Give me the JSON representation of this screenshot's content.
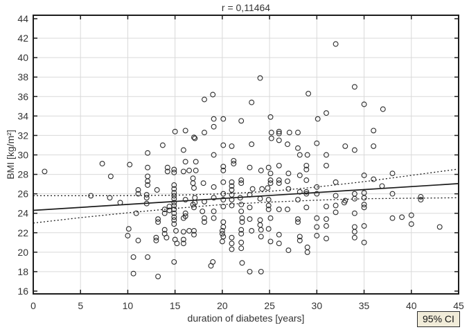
{
  "chart_data": {
    "type": "scatter",
    "title": "r = 0,11464",
    "xlabel": "duration of diabetes [years]",
    "ylabel": "BMI [kg/m²]",
    "legend": {
      "label": "95% CI",
      "position": "bottom-right",
      "bg": "#f1ecd9"
    },
    "xlim": [
      0,
      45
    ],
    "ylim": [
      16,
      44
    ],
    "xticks": [
      0,
      5,
      10,
      15,
      20,
      25,
      30,
      35,
      40,
      45
    ],
    "yticks": [
      16,
      18,
      20,
      22,
      24,
      26,
      28,
      30,
      32,
      34,
      36,
      38,
      40,
      42,
      44
    ],
    "grid": true,
    "colors": {
      "frame": "#1c1c1c",
      "grid": "#d9d9d9",
      "marker": "#2b2b2b",
      "line": "#1c1c1c",
      "text": "#333333"
    },
    "regression_line": {
      "x": [
        0,
        45
      ],
      "y": [
        24.3,
        27.05
      ]
    },
    "ci_upper": {
      "x": [
        0,
        5,
        10,
        15,
        20,
        25,
        30,
        35,
        40,
        45
      ],
      "y": [
        25.8,
        25.8,
        25.82,
        25.85,
        26.0,
        26.25,
        26.7,
        27.25,
        27.9,
        28.55
      ]
    },
    "ci_lower": {
      "x": [
        0,
        5,
        10,
        15,
        20,
        25,
        30,
        35,
        40,
        45
      ],
      "y": [
        23.0,
        23.55,
        24.05,
        24.5,
        24.9,
        25.15,
        25.35,
        25.5,
        25.55,
        25.6
      ]
    },
    "points": [
      [
        1.2,
        28.3
      ],
      [
        6.1,
        25.8
      ],
      [
        7.3,
        29.1
      ],
      [
        8.2,
        27.8
      ],
      [
        8.1,
        25.6
      ],
      [
        9.2,
        25.1
      ],
      [
        10.2,
        29.0
      ],
      [
        10.1,
        22.4
      ],
      [
        10.0,
        21.7
      ],
      [
        10.6,
        19.5
      ],
      [
        10.6,
        17.8
      ],
      [
        11.1,
        26.4
      ],
      [
        11.1,
        26.0
      ],
      [
        10.9,
        24.0
      ],
      [
        11.1,
        21.2
      ],
      [
        12.1,
        30.2
      ],
      [
        12.1,
        28.7
      ],
      [
        12.1,
        27.8
      ],
      [
        12.1,
        27.3
      ],
      [
        12.1,
        26.9
      ],
      [
        12.0,
        25.9
      ],
      [
        12.0,
        25.6
      ],
      [
        12.0,
        25.0
      ],
      [
        12.1,
        19.5
      ],
      [
        13.1,
        26.4
      ],
      [
        13.2,
        23.4
      ],
      [
        13.2,
        23.1
      ],
      [
        13.0,
        21.5
      ],
      [
        13.0,
        21.2
      ],
      [
        13.2,
        17.5
      ],
      [
        13.7,
        31.0
      ],
      [
        14.2,
        28.7
      ],
      [
        14.2,
        28.3
      ],
      [
        13.9,
        24.4
      ],
      [
        13.9,
        24.0
      ],
      [
        14.4,
        24.7
      ],
      [
        14.4,
        24.3
      ],
      [
        13.9,
        22.3
      ],
      [
        13.9,
        21.9
      ],
      [
        14.1,
        21.5
      ],
      [
        14.9,
        28.5
      ],
      [
        14.9,
        28.2
      ],
      [
        14.9,
        26.9
      ],
      [
        14.9,
        26.5
      ],
      [
        14.9,
        26.1
      ],
      [
        14.9,
        25.8
      ],
      [
        14.9,
        25.5
      ],
      [
        14.9,
        25.1
      ],
      [
        14.9,
        24.8
      ],
      [
        14.9,
        24.4
      ],
      [
        14.9,
        24.0
      ],
      [
        14.9,
        23.6
      ],
      [
        14.9,
        23.3
      ],
      [
        14.9,
        22.9
      ],
      [
        15.1,
        22.2
      ],
      [
        15.0,
        21.3
      ],
      [
        15.2,
        20.9
      ],
      [
        14.9,
        19.0
      ],
      [
        15.0,
        32.4
      ],
      [
        15.9,
        30.5
      ],
      [
        16.1,
        29.3
      ],
      [
        16.5,
        28.4
      ],
      [
        15.9,
        28.3
      ],
      [
        16.9,
        27.6
      ],
      [
        16.9,
        27.1
      ],
      [
        16.1,
        25.4
      ],
      [
        16.1,
        24.0
      ],
      [
        16.1,
        23.7
      ],
      [
        15.9,
        23.5
      ],
      [
        15.9,
        22.1
      ],
      [
        16.5,
        22.2
      ],
      [
        15.9,
        21.3
      ],
      [
        15.9,
        20.9
      ],
      [
        16.1,
        32.5
      ],
      [
        17.0,
        31.8
      ],
      [
        17.1,
        31.7
      ],
      [
        17.2,
        29.3
      ],
      [
        17.2,
        28.4
      ],
      [
        17.1,
        25.6
      ],
      [
        17.1,
        25.1
      ],
      [
        17.0,
        26.6
      ],
      [
        17.0,
        24.6
      ],
      [
        16.9,
        24.9
      ],
      [
        17.9,
        24.2
      ],
      [
        17.0,
        22.2
      ],
      [
        17.0,
        21.8
      ],
      [
        18.1,
        35.7
      ],
      [
        18.1,
        32.3
      ],
      [
        18.0,
        27.1
      ],
      [
        18.1,
        25.2
      ],
      [
        18.1,
        23.5
      ],
      [
        18.1,
        23.1
      ],
      [
        19.0,
        36.2
      ],
      [
        19.1,
        33.7
      ],
      [
        19.1,
        32.9
      ],
      [
        19.1,
        30.0
      ],
      [
        19.1,
        26.7
      ],
      [
        19.1,
        25.6
      ],
      [
        19.1,
        24.2
      ],
      [
        19.1,
        23.5
      ],
      [
        19.0,
        19.0
      ],
      [
        18.8,
        18.6
      ],
      [
        20.1,
        33.7
      ],
      [
        20.1,
        31.0
      ],
      [
        20.1,
        28.8
      ],
      [
        20.1,
        28.4
      ],
      [
        20.1,
        27.2
      ],
      [
        20.1,
        26.0
      ],
      [
        20.1,
        25.4
      ],
      [
        20.1,
        24.7
      ],
      [
        20.1,
        23.1
      ],
      [
        20.1,
        22.6
      ],
      [
        20.0,
        22.2
      ],
      [
        20.0,
        21.9
      ],
      [
        20.1,
        21.6
      ],
      [
        20.0,
        21.1
      ],
      [
        21.2,
        29.4
      ],
      [
        21.2,
        29.1
      ],
      [
        21.0,
        30.9
      ],
      [
        21.0,
        27.2
      ],
      [
        21.0,
        26.8
      ],
      [
        21.0,
        26.4
      ],
      [
        21.0,
        25.9
      ],
      [
        21.0,
        25.4
      ],
      [
        21.0,
        24.8
      ],
      [
        21.0,
        21.5
      ],
      [
        21.0,
        20.9
      ],
      [
        21.0,
        20.3
      ],
      [
        22.0,
        33.5
      ],
      [
        21.9,
        25.6
      ],
      [
        22.0,
        27.4
      ],
      [
        22.0,
        27.1
      ],
      [
        22.0,
        24.9
      ],
      [
        22.0,
        24.2
      ],
      [
        22.1,
        23.5
      ],
      [
        22.1,
        23.1
      ],
      [
        22.0,
        22.3
      ],
      [
        22.0,
        21.9
      ],
      [
        22.0,
        21.0
      ],
      [
        22.0,
        20.4
      ],
      [
        22.1,
        18.9
      ],
      [
        22.9,
        28.7
      ],
      [
        23.2,
        26.5
      ],
      [
        22.9,
        25.9
      ],
      [
        22.9,
        24.6
      ],
      [
        22.9,
        23.4
      ],
      [
        23.1,
        31.1
      ],
      [
        23.1,
        35.4
      ],
      [
        23.1,
        22.2
      ],
      [
        22.9,
        18.0
      ],
      [
        24.0,
        37.9
      ],
      [
        24.1,
        28.4
      ],
      [
        24.2,
        26.5
      ],
      [
        24.0,
        25.5
      ],
      [
        24.0,
        23.3
      ],
      [
        24.0,
        22.8
      ],
      [
        24.1,
        22.3
      ],
      [
        24.1,
        21.6
      ],
      [
        24.1,
        18.0
      ],
      [
        24.9,
        28.7
      ],
      [
        25.1,
        33.9
      ],
      [
        25.2,
        32.3
      ],
      [
        25.2,
        31.7
      ],
      [
        25.1,
        28.1
      ],
      [
        25.1,
        27.4
      ],
      [
        25.1,
        27.1
      ],
      [
        24.8,
        26.6
      ],
      [
        24.9,
        25.4
      ],
      [
        24.9,
        24.8
      ],
      [
        24.9,
        24.4
      ],
      [
        24.9,
        22.4
      ],
      [
        25.1,
        23.5
      ],
      [
        25.1,
        21.1
      ],
      [
        26.0,
        32.4
      ],
      [
        26.0,
        32.2
      ],
      [
        26.0,
        31.5
      ],
      [
        26.0,
        28.9
      ],
      [
        26.0,
        27.4
      ],
      [
        26.0,
        27.1
      ],
      [
        26.0,
        24.4
      ],
      [
        26.0,
        21.8
      ],
      [
        26.0,
        20.9
      ],
      [
        26.9,
        31.1
      ],
      [
        27.1,
        32.3
      ],
      [
        27.0,
        28.1
      ],
      [
        26.9,
        27.3
      ],
      [
        27.0,
        26.5
      ],
      [
        26.9,
        24.4
      ],
      [
        27.0,
        20.2
      ],
      [
        28.0,
        32.3
      ],
      [
        28.0,
        30.7
      ],
      [
        28.2,
        30.0
      ],
      [
        28.2,
        27.9
      ],
      [
        28.2,
        26.2
      ],
      [
        28.0,
        25.4
      ],
      [
        28.0,
        23.4
      ],
      [
        28.0,
        23.1
      ],
      [
        28.2,
        21.6
      ],
      [
        28.2,
        21.2
      ],
      [
        29.1,
        36.3
      ],
      [
        29.0,
        30.0
      ],
      [
        28.9,
        28.9
      ],
      [
        28.9,
        28.5
      ],
      [
        28.9,
        27.4
      ],
      [
        28.9,
        26.2
      ],
      [
        28.9,
        26.0
      ],
      [
        28.9,
        24.6
      ],
      [
        29.0,
        20.5
      ],
      [
        29.0,
        20.0
      ],
      [
        30.1,
        33.7
      ],
      [
        30.0,
        31.2
      ],
      [
        30.0,
        26.7
      ],
      [
        30.0,
        26.0
      ],
      [
        30.0,
        23.5
      ],
      [
        30.0,
        22.6
      ],
      [
        30.0,
        21.7
      ],
      [
        32.0,
        41.4
      ],
      [
        34.0,
        37.0
      ],
      [
        35.0,
        35.2
      ],
      [
        37.0,
        34.7
      ],
      [
        31.0,
        34.3
      ],
      [
        36.0,
        32.5
      ],
      [
        33.0,
        30.9
      ],
      [
        34.0,
        30.5
      ],
      [
        36.0,
        30.9
      ],
      [
        31.0,
        30.0
      ],
      [
        31.0,
        28.9
      ],
      [
        32.0,
        27.2
      ],
      [
        35.0,
        27.9
      ],
      [
        36.0,
        27.5
      ],
      [
        38.0,
        28.1
      ],
      [
        32.0,
        25.8
      ],
      [
        33.0,
        25.3
      ],
      [
        34.0,
        26.0
      ],
      [
        34.0,
        25.5
      ],
      [
        35.0,
        26.1
      ],
      [
        35.0,
        25.6
      ],
      [
        35.0,
        24.9
      ],
      [
        35.0,
        24.6
      ],
      [
        36.9,
        26.8
      ],
      [
        38.0,
        26.0
      ],
      [
        41.0,
        25.7
      ],
      [
        41.0,
        25.4
      ],
      [
        31.0,
        24.7
      ],
      [
        32.0,
        24.8
      ],
      [
        32.0,
        24.1
      ],
      [
        32.9,
        25.1
      ],
      [
        34.0,
        24.0
      ],
      [
        31.0,
        23.4
      ],
      [
        31.0,
        22.7
      ],
      [
        38.0,
        23.5
      ],
      [
        39.0,
        23.6
      ],
      [
        40.0,
        23.8
      ],
      [
        40.0,
        22.9
      ],
      [
        43.0,
        22.6
      ],
      [
        31.0,
        21.4
      ],
      [
        34.0,
        22.6
      ],
      [
        34.0,
        22.1
      ],
      [
        34.0,
        21.5
      ],
      [
        35.0,
        22.7
      ],
      [
        35.0,
        21.0
      ]
    ]
  }
}
